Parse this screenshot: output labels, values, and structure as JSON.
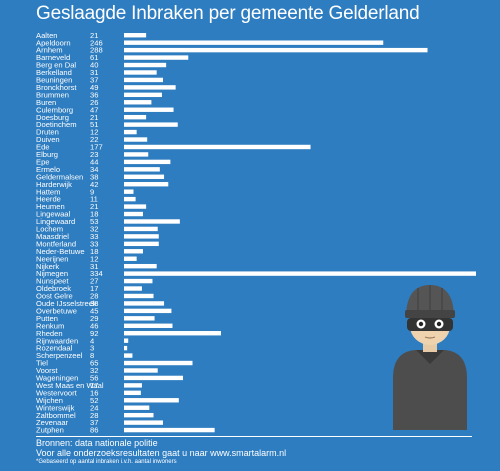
{
  "title": "Geslaagde Inbraken per gemeente Gelderland",
  "colors": {
    "background": "#2e7dc0",
    "bars": "#ffffff",
    "text": "#ffffff"
  },
  "chart_data": {
    "type": "bar",
    "orientation": "horizontal",
    "title": "Geslaagde Inbraken per gemeente Gelderland",
    "categories": [
      "Aalten",
      "Apeldoorn",
      "Arnhem",
      "Barneveld",
      "Berg en Dal",
      "Berkelland",
      "Beuningen",
      "Bronckhorst",
      "Brummen",
      "Buren",
      "Culemborg",
      "Doesburg",
      "Doetinchem",
      "Druten",
      "Duiven",
      "Ede",
      "Elburg",
      "Epe",
      "Ermelo",
      "Geldermalsen",
      "Harderwijk",
      "Hattem",
      "Heerde",
      "Heumen",
      "Lingewaal",
      "Lingewaard",
      "Lochem",
      "Maasdriel",
      "Montferland",
      "Neder-Betuwe",
      "Neerijnen",
      "Nijkerk",
      "Nijmegen",
      "Nunspeet",
      "Oldebroek",
      "Oost Gelre",
      "Oude IJsselstreek",
      "Overbetuwe",
      "Putten",
      "Renkum",
      "Rheden",
      "Rijnwaarden",
      "Rozendaal",
      "Scherpenzeel",
      "Tiel",
      "Voorst",
      "Wageningen",
      "West Maas en Waal",
      "Westervoort",
      "Wijchen",
      "Winterswijk",
      "Zaltbommel",
      "Zevenaar",
      "Zutphen"
    ],
    "values": [
      21,
      246,
      288,
      61,
      40,
      31,
      37,
      49,
      36,
      26,
      47,
      21,
      51,
      12,
      22,
      177,
      23,
      44,
      34,
      38,
      42,
      9,
      11,
      21,
      18,
      53,
      32,
      33,
      33,
      18,
      12,
      31,
      334,
      27,
      17,
      28,
      38,
      45,
      29,
      46,
      92,
      4,
      3,
      8,
      65,
      32,
      56,
      17,
      16,
      52,
      24,
      28,
      37,
      86
    ],
    "xlim": [
      0,
      334
    ]
  },
  "footer": {
    "line1": "Bronnen: data nationale politie",
    "line2": "Voor alle onderzoeksresultaten gaat u naar www.smartalarm.nl",
    "line3": "*Gebaseerd op aantal inbraken i.v.h. aantal inwoners"
  }
}
